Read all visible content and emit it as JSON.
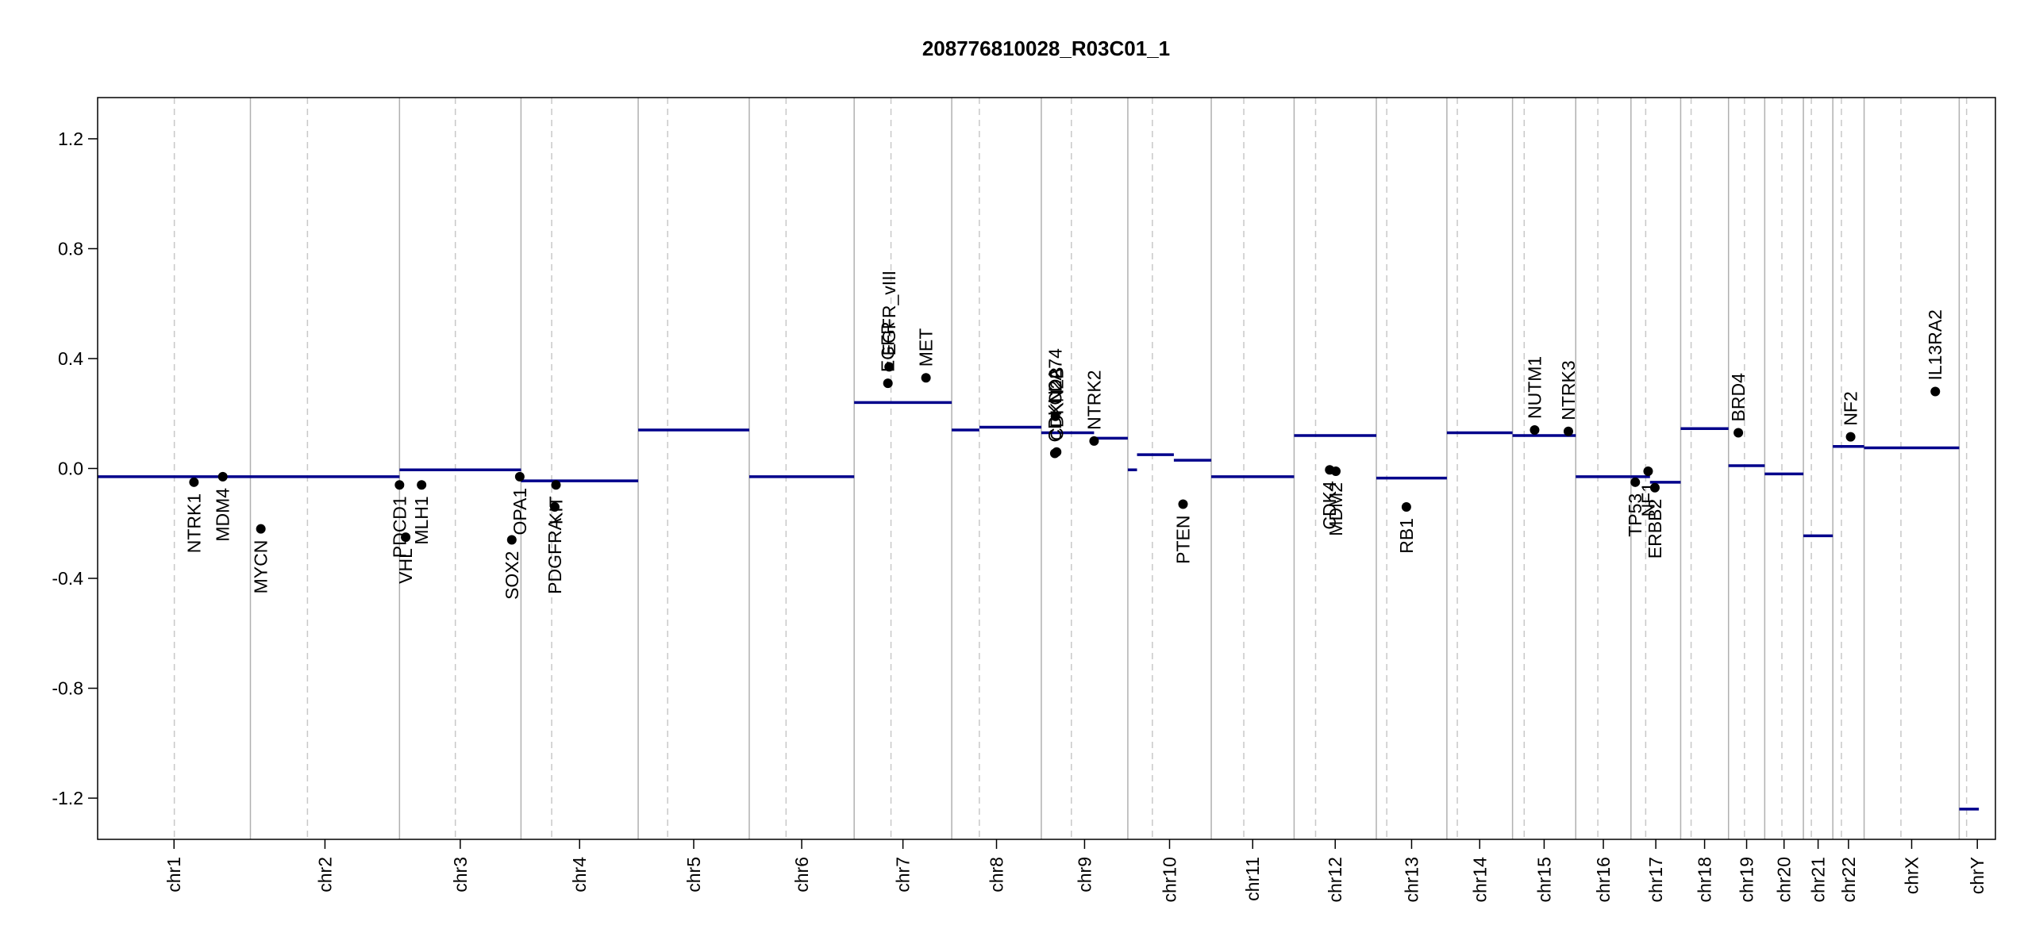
{
  "chart_data": {
    "type": "cnv",
    "title": "208776810028_R03C01_1",
    "categories": [
      "chr1",
      "chr2",
      "chr3",
      "chr4",
      "chr5",
      "chr6",
      "chr7",
      "chr8",
      "chr9",
      "chr10",
      "chr11",
      "chr12",
      "chr13",
      "chr14",
      "chr15",
      "chr16",
      "chr17",
      "chr18",
      "chr19",
      "chr20",
      "chr21",
      "chr22",
      "chrX",
      "chrY"
    ],
    "chromosome_bounds": [
      0,
      249,
      492,
      690,
      881,
      1062,
      1233,
      1392,
      1538,
      1679,
      1815,
      1950,
      2084,
      2199,
      2306,
      2409,
      2499,
      2580,
      2658,
      2717,
      2780,
      2828,
      2879,
      3034,
      3093
    ],
    "centromeres": [
      125,
      93,
      91,
      50,
      48,
      60,
      60,
      45,
      49,
      40,
      53,
      35,
      17,
      17,
      19,
      36,
      24,
      17,
      26,
      28,
      13,
      14,
      60,
      12
    ],
    "segments": {
      "color": "#00008b",
      "start": [
        0,
        249,
        492,
        690,
        881,
        1062,
        1233,
        1392,
        1437,
        1538,
        1624,
        1679,
        1694,
        1754,
        1815,
        1950,
        2084,
        2199,
        2306,
        2409,
        2499,
        2530,
        2580,
        2658,
        2717,
        2780,
        2828,
        2879,
        3034
      ],
      "end": [
        249,
        492,
        690,
        881,
        1062,
        1233,
        1392,
        1437,
        1538,
        1624,
        1679,
        1694,
        1754,
        1815,
        1950,
        2084,
        2199,
        2306,
        2409,
        2499,
        2530,
        2580,
        2658,
        2717,
        2780,
        2828,
        2879,
        3034,
        3066
      ],
      "values": [
        -0.03,
        -0.03,
        -0.005,
        -0.045,
        0.14,
        -0.03,
        0.24,
        0.14,
        0.15,
        0.13,
        0.11,
        -0.005,
        0.05,
        0.03,
        -0.03,
        0.12,
        -0.035,
        0.13,
        0.12,
        -0.03,
        -0.03,
        -0.05,
        0.145,
        0.01,
        -0.02,
        -0.245,
        0.08,
        0.075,
        -1.24
      ]
    },
    "genes": {
      "color": "#000000",
      "names": [
        "NTRK1",
        "MDM4",
        "MYCN",
        "PDCD1",
        "VHL",
        "MLH1",
        "SOX2",
        "OPA1",
        "PDGFRA",
        "KIT",
        "EGFR",
        "EGFR_vIII",
        "MET",
        "CD274",
        "CDKN2A",
        "CDKN2B",
        "NTRK2",
        "PTEN",
        "CDK4",
        "MDM2",
        "RB1",
        "NUTM1",
        "NTRK3",
        "TP53",
        "NF1",
        "ERBB2",
        "BRD4",
        "NF2",
        "IL13RA2"
      ],
      "x": [
        157,
        204,
        266,
        492,
        502,
        528,
        675,
        688,
        745,
        747,
        1288,
        1290,
        1350,
        1561,
        1560,
        1563,
        1624,
        1769,
        2008,
        2018,
        2133,
        2342,
        2397,
        2506,
        2527,
        2538,
        2674,
        2857,
        2995
      ],
      "values": [
        -0.05,
        -0.03,
        -0.22,
        -0.06,
        -0.25,
        -0.06,
        -0.26,
        -0.03,
        -0.14,
        -0.06,
        0.31,
        0.37,
        0.33,
        0.19,
        0.055,
        0.06,
        0.1,
        -0.13,
        -0.005,
        -0.01,
        -0.14,
        0.14,
        0.135,
        -0.05,
        -0.01,
        -0.07,
        0.13,
        0.115,
        0.28
      ]
    },
    "xlim": [
      0,
      3093
    ],
    "ylim": [
      -1.35,
      1.35
    ],
    "yticks": [
      -1.2,
      -0.8,
      -0.4,
      {
        "value": 0,
        "label": "0.0"
      },
      0.4,
      0.8,
      1.2
    ]
  }
}
